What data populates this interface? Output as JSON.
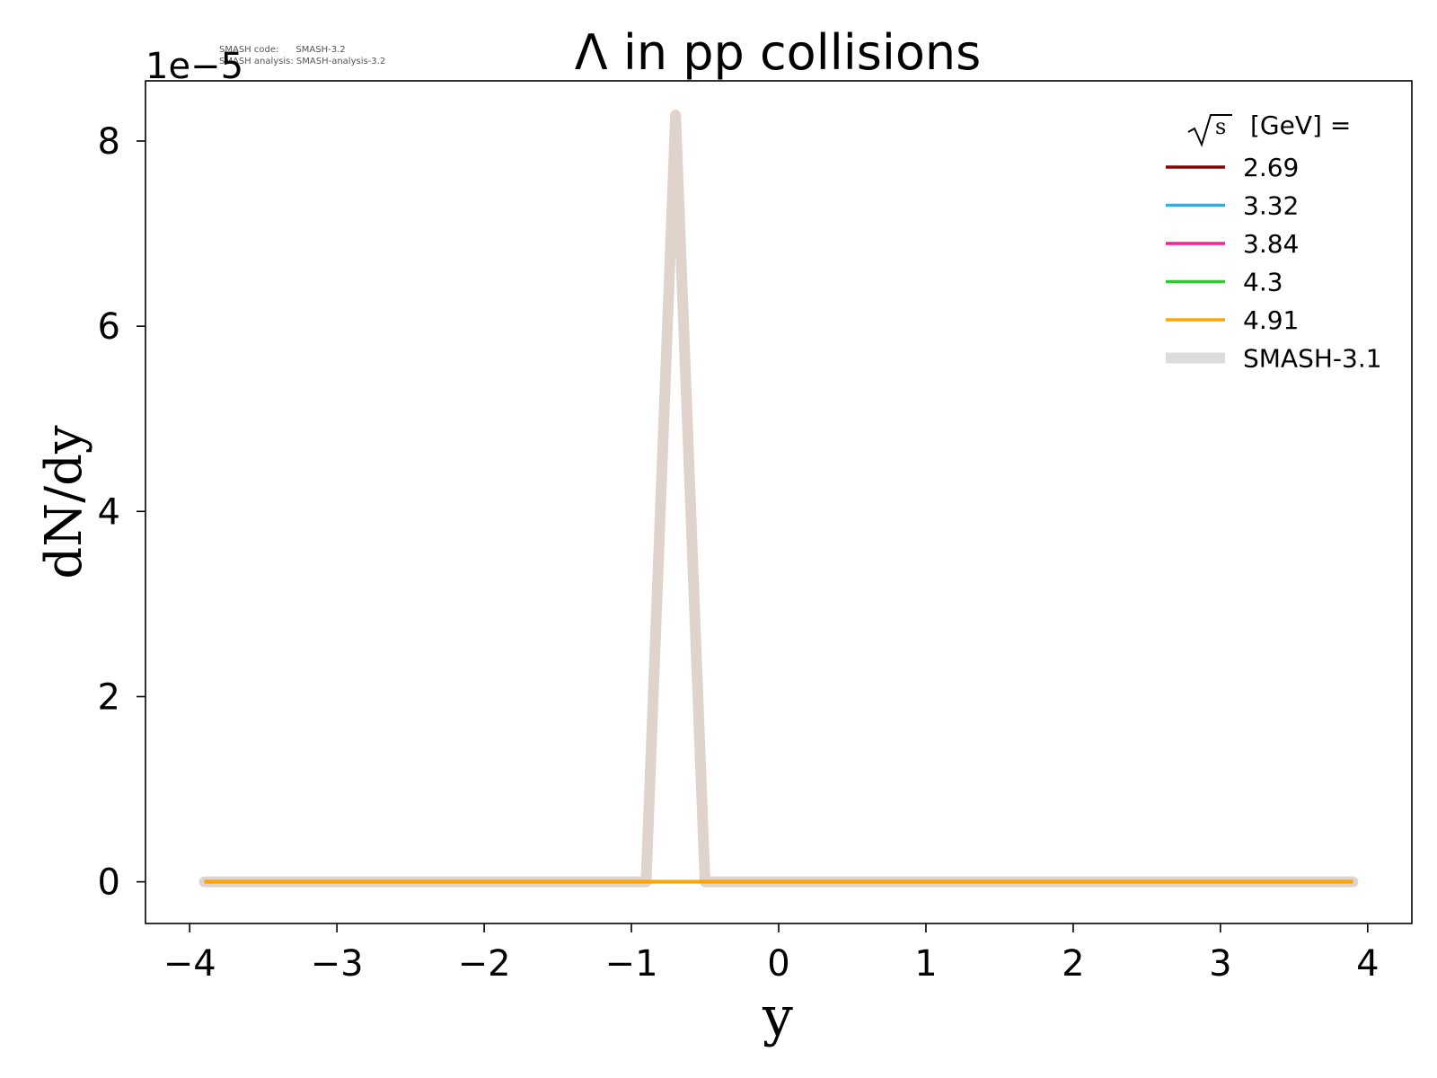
{
  "chart_data": {
    "type": "line",
    "title": "Λ in pp collisions",
    "xlabel": "y",
    "ylabel": "dN/dy",
    "y_scale_label": "1e−5",
    "y_multiplier": 1e-05,
    "xlim": [
      -4.3,
      4.3
    ],
    "ylim": [
      -0.45,
      8.65
    ],
    "xticks": [
      -4,
      -3,
      -2,
      -1,
      0,
      1,
      2,
      3,
      4
    ],
    "xtick_labels": [
      "−4",
      "−3",
      "−2",
      "−1",
      "0",
      "1",
      "2",
      "3",
      "4"
    ],
    "yticks": [
      0,
      2,
      4,
      6,
      8
    ],
    "ytick_labels": [
      "0",
      "2",
      "4",
      "6",
      "8"
    ],
    "grid": false,
    "legend": {
      "title_root": "s",
      "title_text": "[GeV] =",
      "placement": "top-right"
    },
    "series": [
      {
        "name": "SMASH-3.1",
        "color": "#dfd3cb",
        "reference": true,
        "x": [
          -3.9,
          -0.9,
          -0.7,
          -0.5,
          3.9
        ],
        "y": [
          0,
          0,
          8.28,
          0,
          0
        ]
      },
      {
        "name": "2.69",
        "color": "#8b0000",
        "x": [
          -3.9,
          3.9
        ],
        "y": [
          0,
          0
        ]
      },
      {
        "name": "3.32",
        "color": "#1eb4f0",
        "x": [
          -3.9,
          3.9
        ],
        "y": [
          0,
          0
        ]
      },
      {
        "name": "3.84",
        "color": "#ff1e96",
        "x": [
          -3.9,
          3.9
        ],
        "y": [
          0,
          0
        ]
      },
      {
        "name": "4.3",
        "color": "#32c832",
        "x": [
          -3.9,
          3.9
        ],
        "y": [
          0,
          0
        ]
      },
      {
        "name": "4.91",
        "color": "#ffa500",
        "x": [
          -3.9,
          3.9
        ],
        "y": [
          0,
          0
        ]
      }
    ],
    "legend_order": [
      "2.69",
      "3.32",
      "3.84",
      "4.3",
      "4.91",
      "SMASH-3.1"
    ],
    "reference_legend_color": "#dcdcdc",
    "annotation_lines": [
      "SMASH code:      SMASH-3.2",
      "SMASH analysis: SMASH-analysis-3.2"
    ]
  }
}
